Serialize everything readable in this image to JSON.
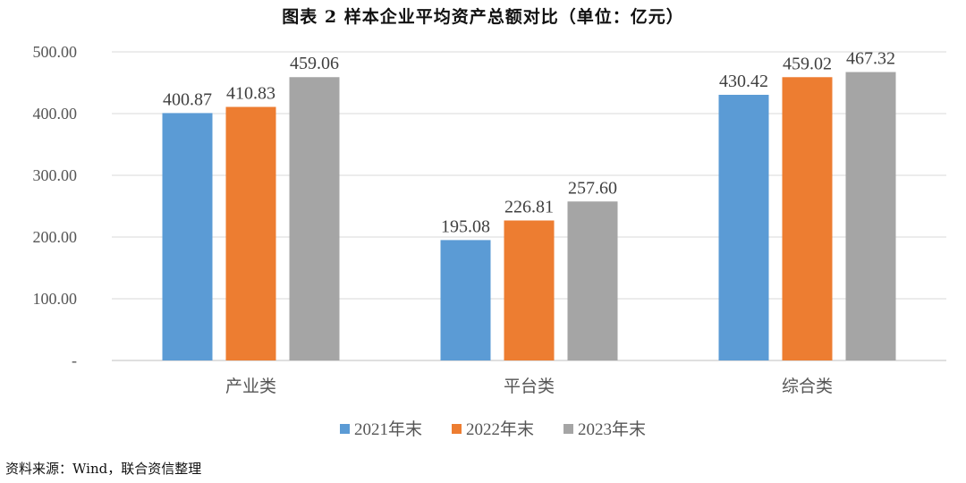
{
  "chart_data": {
    "type": "bar",
    "title": "图表 2   样本企业平均资产总额对比（单位：亿元）",
    "categories": [
      "产业类",
      "平台类",
      "综合类"
    ],
    "series": [
      {
        "name": "2021年末",
        "values": [
          400.87,
          195.08,
          430.42
        ],
        "color": "#5b9bd5"
      },
      {
        "name": "2022年末",
        "values": [
          410.83,
          226.81,
          459.02
        ],
        "color": "#ed7d31"
      },
      {
        "name": "2023年末",
        "values": [
          459.06,
          257.6,
          467.32
        ],
        "color": "#a5a5a5"
      }
    ],
    "ylim": [
      0,
      500
    ],
    "yticks": [
      0,
      100,
      200,
      300,
      400,
      500
    ],
    "ytick_labels": [
      "-",
      "100.00",
      "200.00",
      "300.00",
      "400.00",
      "500.00"
    ],
    "xlabel": "",
    "ylabel": "",
    "grid": true,
    "legend_position": "bottom"
  },
  "source": "资料来源：Wind，联合资信整理"
}
